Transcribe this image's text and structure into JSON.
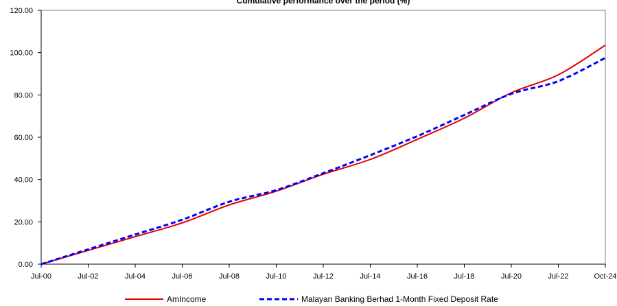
{
  "chart_data": {
    "type": "line",
    "title": "Cumulative performance over the period (%)",
    "xlabel": "",
    "ylabel": "",
    "ylim": [
      0,
      120
    ],
    "yticks": [
      "0.00",
      "20.00",
      "40.00",
      "60.00",
      "80.00",
      "100.00",
      "120.00"
    ],
    "x": [
      "Jul-00",
      "Jul-02",
      "Jul-04",
      "Jul-06",
      "Jul-08",
      "Jul-10",
      "Jul-12",
      "Jul-14",
      "Jul-16",
      "Jul-18",
      "Jul-20",
      "Jul-22",
      "Oct-24"
    ],
    "grid": false,
    "legend_position": "bottom",
    "series": [
      {
        "name": "AmIncome",
        "color": "#e00000",
        "style": "solid",
        "values": [
          0,
          6.5,
          13,
          19.5,
          28,
          34.5,
          42.5,
          49.5,
          59,
          69,
          81,
          89.5,
          103.5
        ]
      },
      {
        "name": "Malayan Banking Berhad 1-Month Fixed Deposit Rate",
        "color": "#0000ff",
        "style": "dashed",
        "values": [
          0,
          7,
          14,
          21,
          29.5,
          35,
          43,
          51.5,
          60.5,
          70.5,
          80.5,
          86.5,
          97.5
        ]
      }
    ]
  }
}
